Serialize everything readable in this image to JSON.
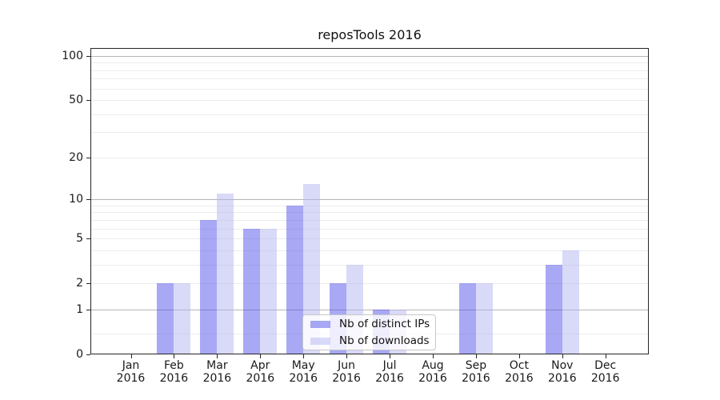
{
  "chart_data": {
    "type": "bar",
    "title": "reposTools 2016",
    "categories": [
      "Jan",
      "Feb",
      "Mar",
      "Apr",
      "May",
      "Jun",
      "Jul",
      "Aug",
      "Sep",
      "Oct",
      "Nov",
      "Dec"
    ],
    "x_year": "2016",
    "series": [
      {
        "name": "Nb of distinct IPs",
        "color": "rgba(81,81,235,0.5)",
        "values": [
          0,
          2,
          7,
          6,
          9,
          2,
          1,
          0,
          2,
          0,
          3,
          0
        ]
      },
      {
        "name": "Nb of downloads",
        "color": "rgba(179,179,241,0.5)",
        "values": [
          0,
          2,
          11,
          6,
          13,
          3,
          1,
          0,
          2,
          0,
          4,
          0
        ]
      }
    ],
    "y_scale": "log10(1+v)",
    "ylim": [
      0,
      113
    ],
    "y_tick_labels": [
      "0",
      "1",
      "2",
      "5",
      "10",
      "20",
      "50",
      "100"
    ],
    "y_tick_values": [
      0,
      1,
      2,
      5,
      10,
      20,
      50,
      100
    ],
    "major_gridline_values": [
      1,
      10,
      100
    ],
    "minor_gridline_values": [
      0.38,
      2,
      3,
      4,
      5,
      6,
      7,
      8,
      9,
      20,
      30,
      40,
      50,
      60,
      70,
      80,
      90
    ],
    "grid": true,
    "legend_position": "lower-center"
  },
  "colors": {
    "series_ips": "rgba(81,81,235,0.5)",
    "series_downloads": "rgba(179,179,241,0.5)",
    "major_grid": "#b4b4b4",
    "minor_grid": "#ececec",
    "spine": "#262626",
    "legend_border": "#c8c8c8"
  }
}
